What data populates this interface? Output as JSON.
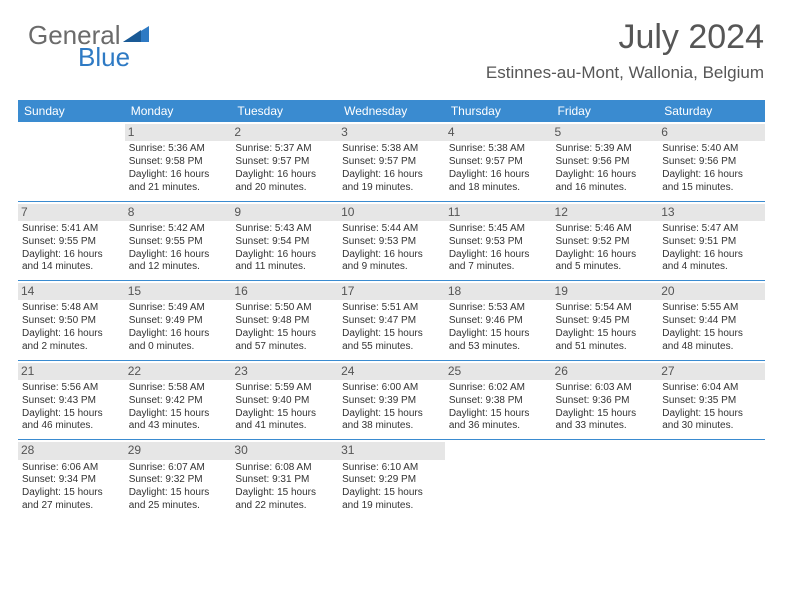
{
  "logo": {
    "line1a": "General",
    "line2": "Blue"
  },
  "title": {
    "month": "July 2024",
    "location": "Estinnes-au-Mont, Wallonia, Belgium"
  },
  "dayHeaders": [
    "Sunday",
    "Monday",
    "Tuesday",
    "Wednesday",
    "Thursday",
    "Friday",
    "Saturday"
  ],
  "colors": {
    "headerBg": "#3a8bd0",
    "rowDivider": "#3a8bd0",
    "dayStrip": "#e6e6e6"
  },
  "weeks": [
    [
      null,
      {
        "n": "1",
        "sr": "Sunrise: 5:36 AM",
        "ss": "Sunset: 9:58 PM",
        "dl1": "Daylight: 16 hours",
        "dl2": "and 21 minutes."
      },
      {
        "n": "2",
        "sr": "Sunrise: 5:37 AM",
        "ss": "Sunset: 9:57 PM",
        "dl1": "Daylight: 16 hours",
        "dl2": "and 20 minutes."
      },
      {
        "n": "3",
        "sr": "Sunrise: 5:38 AM",
        "ss": "Sunset: 9:57 PM",
        "dl1": "Daylight: 16 hours",
        "dl2": "and 19 minutes."
      },
      {
        "n": "4",
        "sr": "Sunrise: 5:38 AM",
        "ss": "Sunset: 9:57 PM",
        "dl1": "Daylight: 16 hours",
        "dl2": "and 18 minutes."
      },
      {
        "n": "5",
        "sr": "Sunrise: 5:39 AM",
        "ss": "Sunset: 9:56 PM",
        "dl1": "Daylight: 16 hours",
        "dl2": "and 16 minutes."
      },
      {
        "n": "6",
        "sr": "Sunrise: 5:40 AM",
        "ss": "Sunset: 9:56 PM",
        "dl1": "Daylight: 16 hours",
        "dl2": "and 15 minutes."
      }
    ],
    [
      {
        "n": "7",
        "sr": "Sunrise: 5:41 AM",
        "ss": "Sunset: 9:55 PM",
        "dl1": "Daylight: 16 hours",
        "dl2": "and 14 minutes."
      },
      {
        "n": "8",
        "sr": "Sunrise: 5:42 AM",
        "ss": "Sunset: 9:55 PM",
        "dl1": "Daylight: 16 hours",
        "dl2": "and 12 minutes."
      },
      {
        "n": "9",
        "sr": "Sunrise: 5:43 AM",
        "ss": "Sunset: 9:54 PM",
        "dl1": "Daylight: 16 hours",
        "dl2": "and 11 minutes."
      },
      {
        "n": "10",
        "sr": "Sunrise: 5:44 AM",
        "ss": "Sunset: 9:53 PM",
        "dl1": "Daylight: 16 hours",
        "dl2": "and 9 minutes."
      },
      {
        "n": "11",
        "sr": "Sunrise: 5:45 AM",
        "ss": "Sunset: 9:53 PM",
        "dl1": "Daylight: 16 hours",
        "dl2": "and 7 minutes."
      },
      {
        "n": "12",
        "sr": "Sunrise: 5:46 AM",
        "ss": "Sunset: 9:52 PM",
        "dl1": "Daylight: 16 hours",
        "dl2": "and 5 minutes."
      },
      {
        "n": "13",
        "sr": "Sunrise: 5:47 AM",
        "ss": "Sunset: 9:51 PM",
        "dl1": "Daylight: 16 hours",
        "dl2": "and 4 minutes."
      }
    ],
    [
      {
        "n": "14",
        "sr": "Sunrise: 5:48 AM",
        "ss": "Sunset: 9:50 PM",
        "dl1": "Daylight: 16 hours",
        "dl2": "and 2 minutes."
      },
      {
        "n": "15",
        "sr": "Sunrise: 5:49 AM",
        "ss": "Sunset: 9:49 PM",
        "dl1": "Daylight: 16 hours",
        "dl2": "and 0 minutes."
      },
      {
        "n": "16",
        "sr": "Sunrise: 5:50 AM",
        "ss": "Sunset: 9:48 PM",
        "dl1": "Daylight: 15 hours",
        "dl2": "and 57 minutes."
      },
      {
        "n": "17",
        "sr": "Sunrise: 5:51 AM",
        "ss": "Sunset: 9:47 PM",
        "dl1": "Daylight: 15 hours",
        "dl2": "and 55 minutes."
      },
      {
        "n": "18",
        "sr": "Sunrise: 5:53 AM",
        "ss": "Sunset: 9:46 PM",
        "dl1": "Daylight: 15 hours",
        "dl2": "and 53 minutes."
      },
      {
        "n": "19",
        "sr": "Sunrise: 5:54 AM",
        "ss": "Sunset: 9:45 PM",
        "dl1": "Daylight: 15 hours",
        "dl2": "and 51 minutes."
      },
      {
        "n": "20",
        "sr": "Sunrise: 5:55 AM",
        "ss": "Sunset: 9:44 PM",
        "dl1": "Daylight: 15 hours",
        "dl2": "and 48 minutes."
      }
    ],
    [
      {
        "n": "21",
        "sr": "Sunrise: 5:56 AM",
        "ss": "Sunset: 9:43 PM",
        "dl1": "Daylight: 15 hours",
        "dl2": "and 46 minutes."
      },
      {
        "n": "22",
        "sr": "Sunrise: 5:58 AM",
        "ss": "Sunset: 9:42 PM",
        "dl1": "Daylight: 15 hours",
        "dl2": "and 43 minutes."
      },
      {
        "n": "23",
        "sr": "Sunrise: 5:59 AM",
        "ss": "Sunset: 9:40 PM",
        "dl1": "Daylight: 15 hours",
        "dl2": "and 41 minutes."
      },
      {
        "n": "24",
        "sr": "Sunrise: 6:00 AM",
        "ss": "Sunset: 9:39 PM",
        "dl1": "Daylight: 15 hours",
        "dl2": "and 38 minutes."
      },
      {
        "n": "25",
        "sr": "Sunrise: 6:02 AM",
        "ss": "Sunset: 9:38 PM",
        "dl1": "Daylight: 15 hours",
        "dl2": "and 36 minutes."
      },
      {
        "n": "26",
        "sr": "Sunrise: 6:03 AM",
        "ss": "Sunset: 9:36 PM",
        "dl1": "Daylight: 15 hours",
        "dl2": "and 33 minutes."
      },
      {
        "n": "27",
        "sr": "Sunrise: 6:04 AM",
        "ss": "Sunset: 9:35 PM",
        "dl1": "Daylight: 15 hours",
        "dl2": "and 30 minutes."
      }
    ],
    [
      {
        "n": "28",
        "sr": "Sunrise: 6:06 AM",
        "ss": "Sunset: 9:34 PM",
        "dl1": "Daylight: 15 hours",
        "dl2": "and 27 minutes."
      },
      {
        "n": "29",
        "sr": "Sunrise: 6:07 AM",
        "ss": "Sunset: 9:32 PM",
        "dl1": "Daylight: 15 hours",
        "dl2": "and 25 minutes."
      },
      {
        "n": "30",
        "sr": "Sunrise: 6:08 AM",
        "ss": "Sunset: 9:31 PM",
        "dl1": "Daylight: 15 hours",
        "dl2": "and 22 minutes."
      },
      {
        "n": "31",
        "sr": "Sunrise: 6:10 AM",
        "ss": "Sunset: 9:29 PM",
        "dl1": "Daylight: 15 hours",
        "dl2": "and 19 minutes."
      },
      null,
      null,
      null
    ]
  ]
}
